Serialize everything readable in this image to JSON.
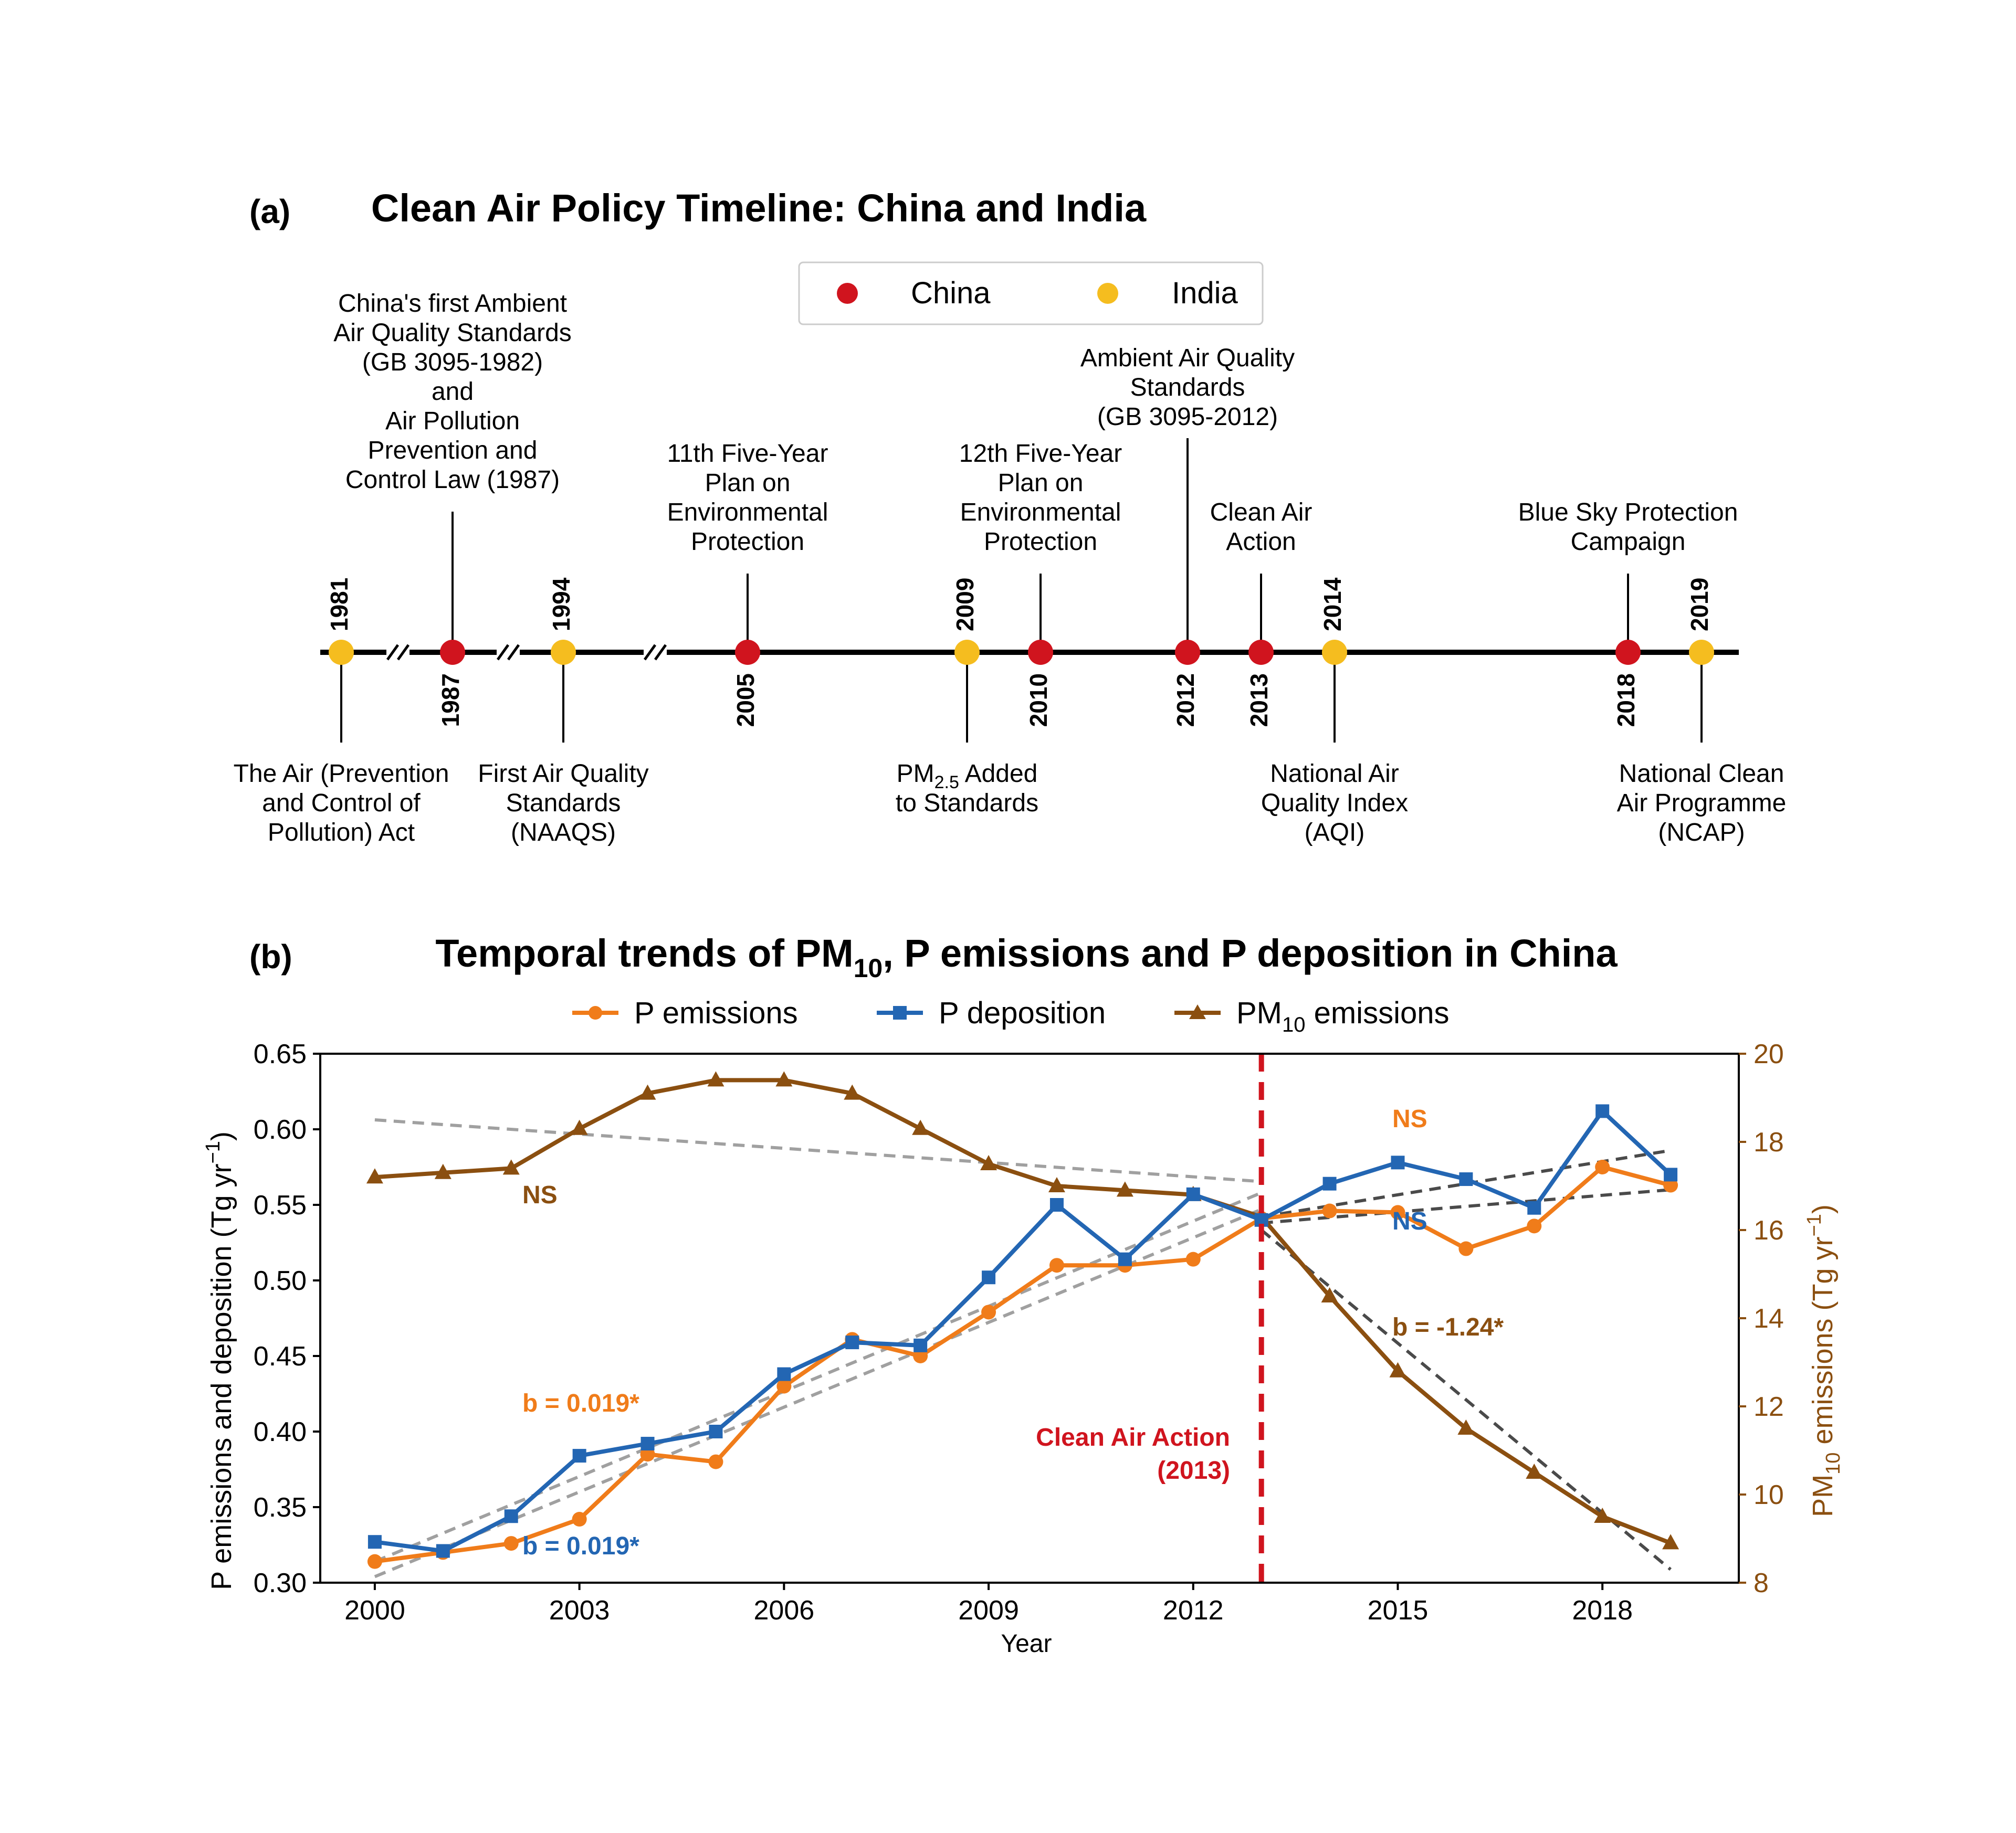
{
  "panel_a": {
    "label": "(a)",
    "title": "Clean Air Policy Timeline: China and India",
    "legend": [
      {
        "label": "China",
        "color": "#d0141e"
      },
      {
        "label": "India",
        "color": "#f5bd1f"
      }
    ],
    "events": [
      {
        "year": "1981",
        "country": "India",
        "side": "below",
        "text": [
          "The Air (Prevention",
          "and Control of",
          "Pollution) Act"
        ]
      },
      {
        "year": "1987",
        "country": "China",
        "side": "above",
        "text": [
          "China's first Ambient",
          "Air Quality Standards",
          "(GB 3095-1982)",
          "and",
          "Air Pollution",
          "Prevention and",
          "Control Law (1987)"
        ]
      },
      {
        "year": "1994",
        "country": "India",
        "side": "below",
        "text": [
          "First Air Quality",
          "Standards",
          "(NAAQS)"
        ]
      },
      {
        "year": "2005",
        "country": "China",
        "side": "above",
        "text": [
          "11th Five-Year",
          "Plan on",
          "Environmental",
          "Protection"
        ]
      },
      {
        "year": "2009",
        "country": "India",
        "side": "below",
        "text": [
          "PM2.5 Added",
          "to Standards"
        ]
      },
      {
        "year": "2010",
        "country": "China",
        "side": "above",
        "text": [
          "12th Five-Year",
          "Plan on",
          "Environmental",
          "Protection"
        ]
      },
      {
        "year": "2012",
        "country": "China",
        "side": "above",
        "text": [
          "Ambient Air Quality",
          "Standards",
          "(GB 3095-2012)"
        ]
      },
      {
        "year": "2013",
        "country": "China",
        "side": "above",
        "text": [
          "Clean Air",
          "Action"
        ]
      },
      {
        "year": "2014",
        "country": "India",
        "side": "below",
        "text": [
          "National Air",
          "Quality Index",
          "(AQI)"
        ]
      },
      {
        "year": "2018",
        "country": "China",
        "side": "above",
        "text": [
          "Blue Sky Protection",
          "Campaign"
        ]
      },
      {
        "year": "2019",
        "country": "India",
        "side": "below",
        "text": [
          "National Clean",
          "Air Programme",
          "(NCAP)"
        ]
      }
    ]
  },
  "panel_b": {
    "label": "(b)",
    "title_parts": [
      "Temporal trends of PM",
      "10",
      ", P emissions and P deposition in China"
    ],
    "legend": [
      {
        "label": "P emissions",
        "sub": ""
      },
      {
        "label": "P deposition",
        "sub": ""
      },
      {
        "label": "PM",
        "sub": "10",
        "after": " emissions"
      }
    ],
    "y_left_label": "P emissions and deposition (Tg yr",
    "y_left_sup": "−1",
    "y_right_label_parts": [
      "PM",
      "10",
      " emissions (Tg yr",
      "−1",
      ")"
    ],
    "annotations": {
      "policy_line": [
        "Clean Air Action",
        "(2013)"
      ],
      "emis_slope": "b = 0.019*",
      "dep_slope": "b = 0.019*",
      "pm_slope": "b = -1.24*",
      "ns_pm": "NS",
      "ns_emis": "NS",
      "ns_dep": "NS"
    }
  },
  "chart_data": [
    {
      "type": "timeline",
      "title": "Clean Air Policy Timeline: China and India",
      "series": [
        {
          "name": "China",
          "years": [
            1987,
            2005,
            2010,
            2012,
            2013,
            2018
          ]
        },
        {
          "name": "India",
          "years": [
            1981,
            1994,
            2009,
            2014,
            2019
          ]
        }
      ]
    },
    {
      "type": "line",
      "title": "Temporal trends of PM10, P emissions and P deposition in China",
      "xlabel": "Year",
      "ylabel": "P emissions and deposition (Tg yr−1)",
      "y2label": "PM10 emissions (Tg yr−1)",
      "xlim": [
        1999.2,
        2020.0
      ],
      "ylim": [
        0.3,
        0.65
      ],
      "y2lim": [
        8,
        20
      ],
      "x_ticks": [
        2000,
        2003,
        2006,
        2009,
        2012,
        2015,
        2018
      ],
      "y_ticks": [
        0.3,
        0.35,
        0.4,
        0.45,
        0.5,
        0.55,
        0.6,
        0.65
      ],
      "y2_ticks": [
        8,
        10,
        12,
        14,
        16,
        18,
        20
      ],
      "y_tick_labels": [
        "0.30",
        "0.35",
        "0.40",
        "0.45",
        "0.50",
        "0.55",
        "0.60",
        "0.65"
      ],
      "y2_tick_labels": [
        "8",
        "10",
        "12",
        "14",
        "16",
        "18",
        "20"
      ],
      "x": [
        2000,
        2001,
        2002,
        2003,
        2004,
        2005,
        2006,
        2007,
        2008,
        2009,
        2010,
        2011,
        2012,
        2013,
        2014,
        2015,
        2016,
        2017,
        2018,
        2019
      ],
      "series": [
        {
          "name": "P emissions",
          "axis": "left",
          "color": "#f07c1a",
          "marker": "circle",
          "values": [
            0.314,
            0.32,
            0.326,
            0.342,
            0.385,
            0.38,
            0.43,
            0.461,
            0.45,
            0.479,
            0.51,
            0.51,
            0.514,
            0.541,
            0.546,
            0.545,
            0.521,
            0.536,
            0.575,
            0.563
          ]
        },
        {
          "name": "P deposition",
          "axis": "left",
          "color": "#2366b3",
          "marker": "square",
          "values": [
            0.327,
            0.321,
            0.344,
            0.384,
            0.392,
            0.4,
            0.438,
            0.459,
            0.457,
            0.502,
            0.55,
            0.514,
            0.557,
            0.54,
            0.564,
            0.578,
            0.567,
            0.548,
            0.612,
            0.57
          ]
        },
        {
          "name": "PM10 emissions",
          "axis": "right",
          "color": "#8b4f10",
          "marker": "triangle",
          "values": [
            17.2,
            17.3,
            17.4,
            18.3,
            19.1,
            19.4,
            19.4,
            19.1,
            18.3,
            17.5,
            17.0,
            16.9,
            16.8,
            16.3,
            14.5,
            12.8,
            11.5,
            10.5,
            9.5,
            8.9
          ]
        }
      ],
      "trend_lines": [
        {
          "for": "PM10 emissions",
          "axis": "right",
          "period": [
            2000,
            2013
          ],
          "from": 18.5,
          "to": 17.1,
          "color": "#a0a0a0"
        },
        {
          "for": "P emissions",
          "axis": "left",
          "period": [
            2000,
            2013
          ],
          "from": 0.304,
          "to": 0.547,
          "color": "#a0a0a0"
        },
        {
          "for": "P deposition",
          "axis": "left",
          "period": [
            2000,
            2013
          ],
          "from": 0.314,
          "to": 0.558,
          "color": "#a0a0a0"
        },
        {
          "for": "PM10 emissions",
          "axis": "right",
          "period": [
            2013,
            2019
          ],
          "from": 16.0,
          "to": 8.3,
          "color": "#4a4a4a"
        },
        {
          "for": "P emissions",
          "axis": "left",
          "period": [
            2013,
            2019
          ],
          "from": 0.538,
          "to": 0.56,
          "color": "#4a4a4a"
        },
        {
          "for": "P deposition",
          "axis": "left",
          "period": [
            2013,
            2019
          ],
          "from": 0.542,
          "to": 0.586,
          "color": "#4a4a4a"
        }
      ],
      "vertical_line": {
        "x": 2013,
        "color": "#d0141e"
      }
    }
  ]
}
